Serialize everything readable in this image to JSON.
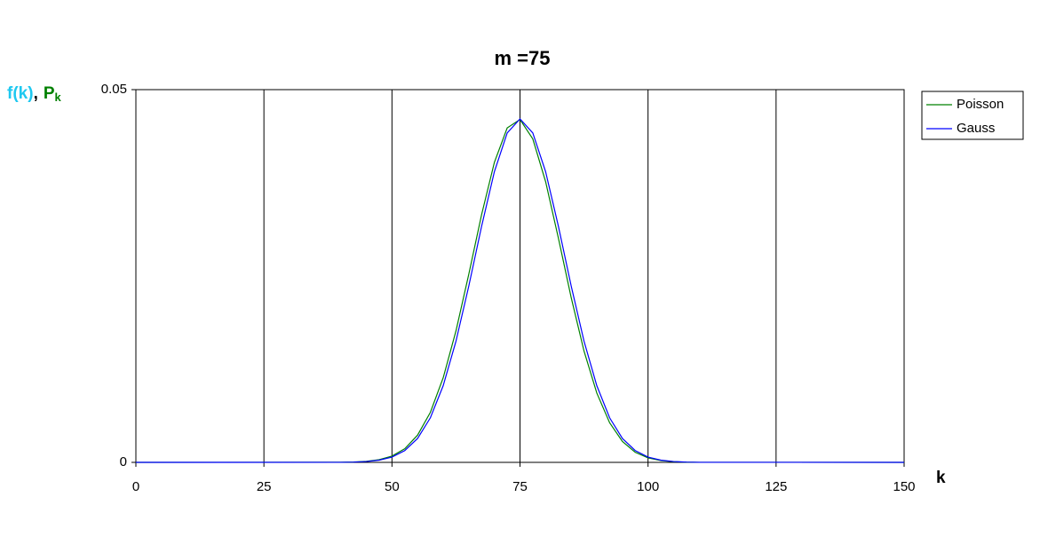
{
  "chart_data": {
    "type": "line",
    "title": "m =75",
    "y_label": {
      "func": "f(k)",
      "separator": ",",
      "prob": "P",
      "prob_subscript": "k"
    },
    "x_label": "k",
    "x": [
      0,
      40,
      42.5,
      45,
      47.5,
      50,
      52.5,
      55,
      57.5,
      60,
      62.5,
      65,
      67.5,
      70,
      72.5,
      75,
      77.5,
      80,
      82.5,
      85,
      87.5,
      90,
      92.5,
      95,
      97.5,
      100,
      102.5,
      105,
      107.5,
      110,
      150
    ],
    "series": [
      {
        "name": "Poisson",
        "color": "#008000",
        "values": [
          0,
          2e-05,
          5e-05,
          0.00014,
          0.00036,
          0.00084,
          0.00183,
          0.00365,
          0.00671,
          0.01134,
          0.01764,
          0.02524,
          0.03323,
          0.04025,
          0.04486,
          0.04599,
          0.04339,
          0.03766,
          0.03007,
          0.02209,
          0.01493,
          0.00929,
          0.00531,
          0.0028,
          0.00135,
          0.0006,
          0.00025,
          9e-05,
          3e-05,
          1e-05,
          0
        ]
      },
      {
        "name": "Gauss",
        "color": "#0000ff",
        "values": [
          0,
          1e-05,
          4e-05,
          0.00011,
          0.0003,
          0.00071,
          0.00158,
          0.0032,
          0.00598,
          0.01028,
          0.01626,
          0.02365,
          0.03166,
          0.039,
          0.04419,
          0.04607,
          0.04419,
          0.039,
          0.03166,
          0.02365,
          0.01626,
          0.01028,
          0.00598,
          0.0032,
          0.00158,
          0.00071,
          0.0003,
          0.00011,
          4e-05,
          1e-05,
          0
        ]
      }
    ],
    "xlim": [
      0,
      150
    ],
    "xticks": [
      0,
      25,
      50,
      75,
      100,
      125,
      150
    ],
    "ylim": [
      0,
      0.05
    ],
    "yticks": [
      0,
      0.05
    ],
    "grid": "x",
    "legend": "right"
  }
}
